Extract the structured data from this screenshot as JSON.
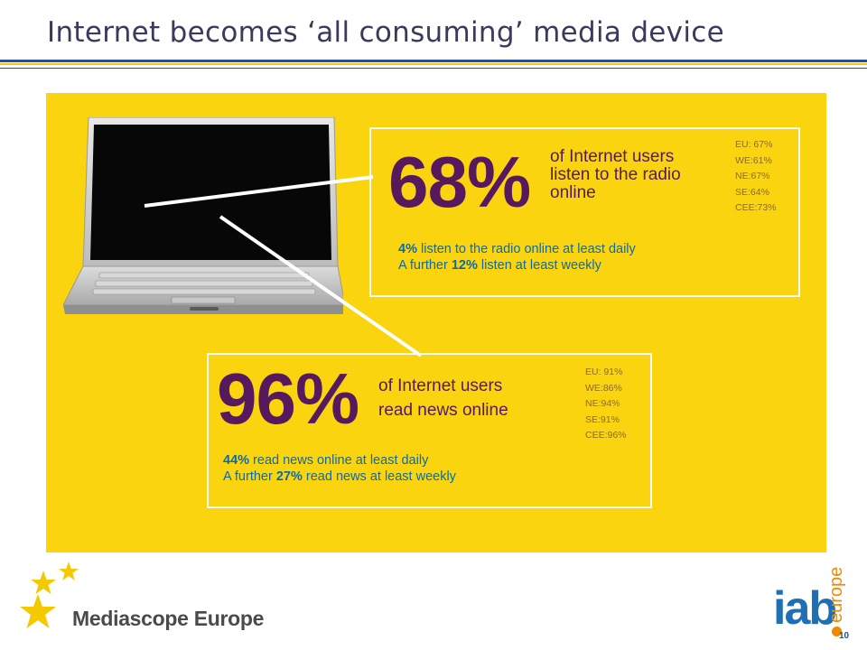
{
  "slide": {
    "title": "Internet becomes ‘all consuming’ media device",
    "page_number": "10"
  },
  "radio": {
    "percent": "68%",
    "desc_lines": [
      "of Internet users",
      "listen to the radio",
      "online"
    ],
    "regional": [
      "EU: 67%",
      "WE:61%",
      "NE:67%",
      "SE:64%",
      "CEE:73%"
    ],
    "daily_pct": "4%",
    "daily_text": " listen to the radio online at least daily",
    "weekly_prefix": "A further ",
    "weekly_pct": "12%",
    "weekly_text": " listen at least weekly"
  },
  "news": {
    "percent": "96%",
    "desc_lines": [
      "of Internet users",
      "read news online"
    ],
    "regional": [
      "EU: 91%",
      "WE:86%",
      "NE:94%",
      "SE:91%",
      "CEE:96%"
    ],
    "daily_pct": "44%",
    "daily_text": " read news online at least daily",
    "weekly_prefix": "A further ",
    "weekly_pct": "27%",
    "weekly_text": " read news at least weekly"
  },
  "footer": {
    "brand_left": "Mediascope Europe",
    "brand_right_main": "iab",
    "brand_right_sub": "europe"
  },
  "colors": {
    "panel": "#fad40f",
    "headline": "#56195e",
    "detail": "#0d6aa3",
    "title": "#3a3a5a"
  },
  "icons": {
    "laptop": "laptop-illustration",
    "stars": "star-icon"
  }
}
